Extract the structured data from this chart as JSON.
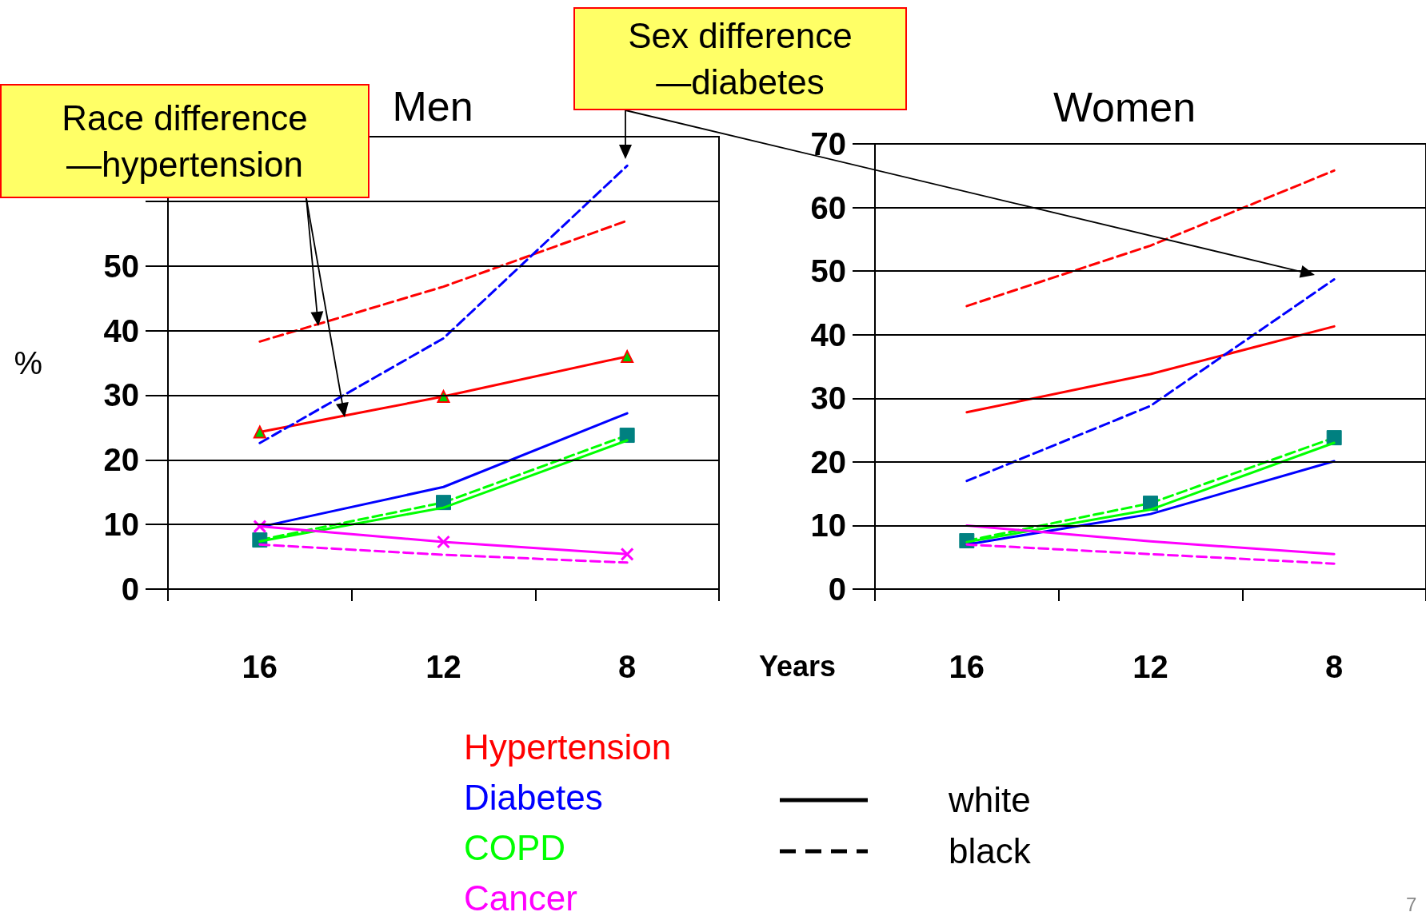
{
  "chart_data": [
    {
      "type": "line",
      "title": "Men",
      "ylabel": "%",
      "xlabel": "Years",
      "categories": [
        "16",
        "12",
        "8"
      ],
      "ylim": [
        0,
        70
      ],
      "yticks": [
        0,
        10,
        20,
        30,
        40,
        50,
        {
          "value": 60,
          "label": null
        },
        {
          "value": 70,
          "label": null
        }
      ],
      "grid": "y",
      "legend": "bottom",
      "marker": "none",
      "annotations": [
        "Race difference —hypertension",
        "white",
        "black"
      ],
      "series": [
        {
          "name": "Hypertension",
          "color": "#ff0000",
          "line_style": "solid",
          "marker": "triangle",
          "values": [
            24.3,
            29.8,
            36
          ]
        },
        {
          "color": "#ff0000",
          "line_style": "dashed",
          "values": [
            38.3,
            46.8,
            57
          ]
        },
        {
          "name": "Diabetes",
          "color": "#0000ff",
          "line_style": "solid",
          "values": [
            9.6,
            15.8,
            27.2
          ]
        },
        {
          "color": "#0000ff",
          "line_style": "dashed",
          "values": [
            22.6,
            38.8,
            65.5
          ]
        },
        {
          "name": "COPD",
          "color": "#00ff00",
          "line_style": "solid",
          "values": [
            7.4,
            12.6,
            23
          ]
        },
        {
          "color": "#00ff00",
          "line_style": "dashed",
          "marker": "square",
          "values": [
            7.6,
            13.4,
            23.8
          ]
        },
        {
          "name": "Cancer",
          "color": "#ff00ff",
          "line_style": "solid",
          "marker": "cross",
          "values": [
            9.7,
            7.3,
            5.4
          ]
        },
        {
          "color": "#ff00ff",
          "line_style": "dashed",
          "values": [
            6.9,
            5.3,
            4.1
          ]
        }
      ]
    },
    {
      "type": "line",
      "title": "Women",
      "categories": [
        "16",
        "12",
        "8"
      ],
      "ylim": [
        0,
        70
      ],
      "yticks": [
        0,
        10,
        20,
        30,
        40,
        50,
        60,
        70
      ],
      "grid": "y",
      "marker": "none",
      "annotations": [
        "Sex difference —diabetes",
        "7"
      ],
      "series": [
        {
          "color": "#ff0000",
          "line_style": "solid",
          "values": [
            27.8,
            33.8,
            41.3
          ]
        },
        {
          "color": "#ff0000",
          "line_style": "dashed",
          "values": [
            44.5,
            54,
            65.8
          ]
        },
        {
          "color": "#0000ff",
          "line_style": "solid",
          "values": [
            7,
            11.8,
            20.1
          ]
        },
        {
          "color": "#0000ff",
          "line_style": "dashed",
          "values": [
            17,
            28.8,
            48.7
          ]
        },
        {
          "color": "#00ff00",
          "line_style": "solid",
          "values": [
            7.4,
            12.5,
            23
          ]
        },
        {
          "color": "#00ff00",
          "line_style": "dashed",
          "marker": "square",
          "values": [
            7.6,
            13.5,
            23.8
          ]
        },
        {
          "color": "#ff00ff",
          "line_style": "solid",
          "values": [
            10,
            7.5,
            5.5
          ]
        },
        {
          "color": "#ff00ff",
          "line_style": "dashed",
          "values": [
            7,
            5.5,
            4
          ]
        }
      ]
    }
  ]
}
